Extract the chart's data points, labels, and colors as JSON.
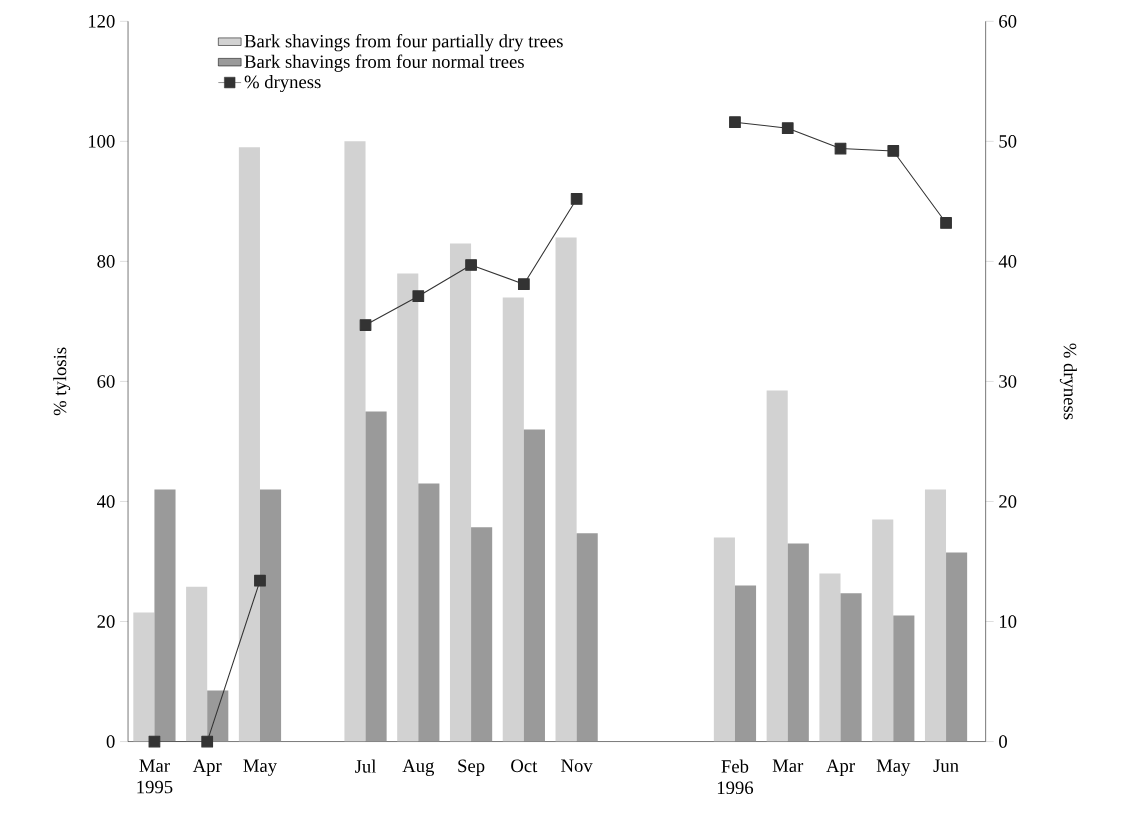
{
  "chart_data": {
    "type": "bar",
    "ylabel": "% tylosis",
    "y2label": "% dryness",
    "categories": [
      "Mar 1995",
      "Apr",
      "May",
      null,
      "Jul",
      "Aug",
      "Sep",
      "Oct",
      "Nov",
      null,
      null,
      "Feb 1996",
      "Mar",
      "Apr",
      "May",
      "Jun"
    ],
    "series": [
      {
        "name": "Bark shavings from four partially dry trees",
        "color": "#d2d2d2",
        "values": [
          21.5,
          25.8,
          99,
          null,
          100,
          78,
          83,
          74,
          84,
          null,
          null,
          34,
          58.5,
          28,
          37,
          42
        ]
      },
      {
        "name": "Bark shavings from four normal trees",
        "color": "#9a9a9a",
        "values": [
          42,
          8.5,
          42,
          null,
          55,
          43,
          35.7,
          52,
          34.7,
          null,
          null,
          26,
          33,
          24.7,
          21,
          31.5
        ]
      },
      {
        "name": "% dryness",
        "type": "line",
        "axis": "y2",
        "color": "#333333",
        "marker": "square",
        "line_style": "solid",
        "values": [
          0,
          0,
          13.4,
          null,
          34.7,
          37.1,
          39.7,
          38.1,
          45.2,
          null,
          null,
          51.6,
          51.1,
          49.4,
          49.2,
          43.2
        ]
      }
    ],
    "ylim": [
      0,
      120
    ],
    "yticks": [
      0,
      20,
      40,
      60,
      80,
      100,
      120
    ],
    "y2lim": [
      0,
      60
    ],
    "y2ticks": [
      0,
      10,
      20,
      30,
      40,
      50,
      60
    ],
    "legend": "top left",
    "grid": false
  }
}
